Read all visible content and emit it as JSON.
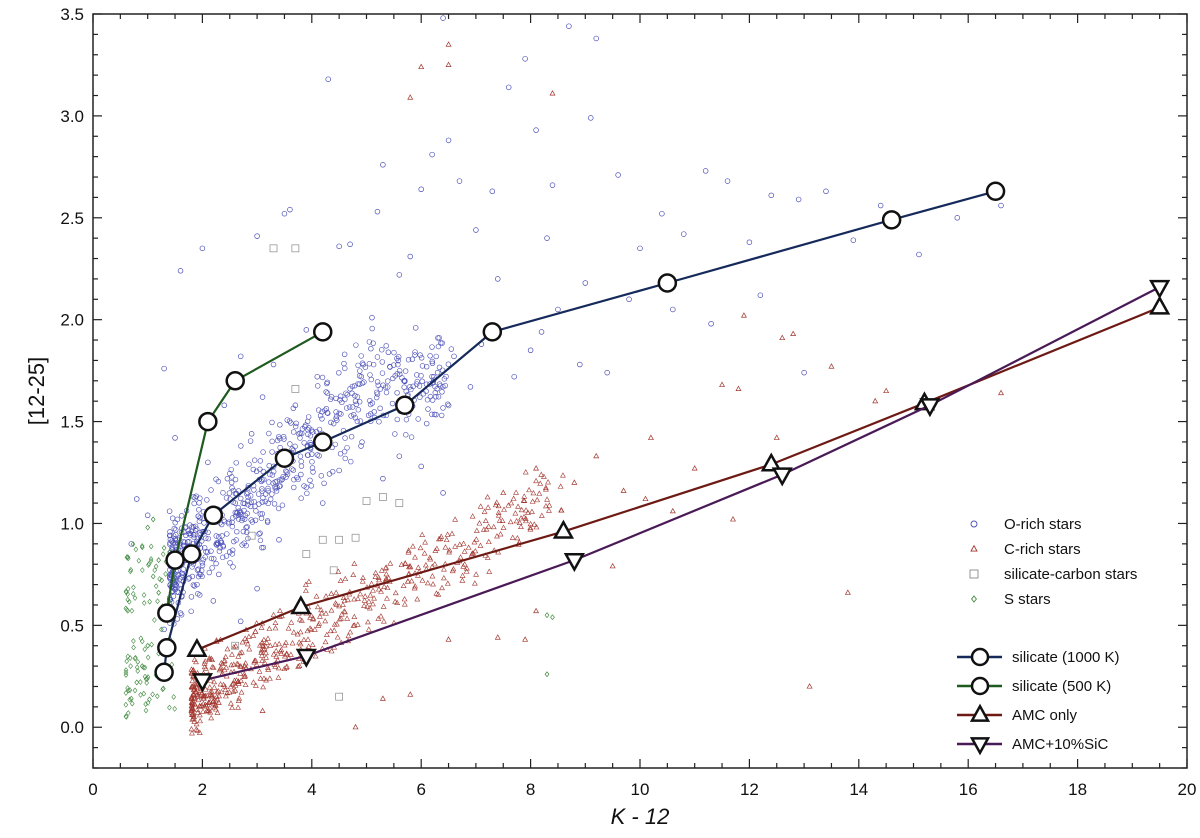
{
  "chart_data": {
    "type": "scatter",
    "title": "",
    "xlabel": "K - 12",
    "ylabel": "[12-25]",
    "xlim": [
      0,
      20
    ],
    "ylim": [
      -0.2,
      3.5
    ],
    "xticks": [
      0,
      2,
      4,
      6,
      8,
      10,
      12,
      14,
      16,
      18,
      20
    ],
    "yticks": [
      0.0,
      0.5,
      1.0,
      1.5,
      2.0,
      2.5,
      3.0,
      3.5
    ],
    "ytick_labels": [
      "0.0",
      "0.5",
      "1.0",
      "1.5",
      "2.0",
      "2.5",
      "3.0",
      "3.5"
    ],
    "grid": false,
    "legend_position": "right",
    "scatter_series": [
      {
        "name": "O-rich stars",
        "marker": "circle",
        "color": "#4b4fb8",
        "points": [
          [
            1.3,
            1.76
          ],
          [
            2.0,
            2.35
          ],
          [
            1.6,
            2.24
          ],
          [
            2.7,
            1.82
          ],
          [
            3.0,
            2.41
          ],
          [
            3.5,
            2.52
          ],
          [
            3.6,
            2.54
          ],
          [
            4.3,
            3.18
          ],
          [
            4.5,
            2.36
          ],
          [
            4.7,
            2.37
          ],
          [
            5.2,
            2.53
          ],
          [
            5.3,
            2.76
          ],
          [
            5.6,
            2.22
          ],
          [
            5.8,
            2.31
          ],
          [
            6.0,
            2.64
          ],
          [
            6.2,
            2.81
          ],
          [
            6.5,
            2.88
          ],
          [
            6.7,
            2.68
          ],
          [
            7.0,
            2.44
          ],
          [
            7.3,
            2.63
          ],
          [
            7.6,
            3.14
          ],
          [
            7.9,
            3.28
          ],
          [
            8.1,
            2.93
          ],
          [
            8.4,
            2.66
          ],
          [
            8.7,
            3.44
          ],
          [
            9.1,
            2.99
          ],
          [
            9.2,
            3.38
          ],
          [
            9.6,
            2.71
          ],
          [
            10.0,
            2.35
          ],
          [
            10.4,
            2.52
          ],
          [
            10.8,
            2.42
          ],
          [
            11.2,
            2.73
          ],
          [
            11.6,
            2.68
          ],
          [
            12.0,
            2.38
          ],
          [
            12.4,
            2.61
          ],
          [
            12.9,
            2.59
          ],
          [
            13.4,
            2.63
          ],
          [
            13.9,
            2.39
          ],
          [
            14.4,
            2.56
          ],
          [
            15.1,
            2.32
          ],
          [
            15.8,
            2.5
          ],
          [
            16.6,
            2.56
          ],
          [
            6.4,
            3.48
          ],
          [
            7.4,
            2.2
          ],
          [
            8.3,
            2.4
          ],
          [
            9.0,
            2.18
          ],
          [
            9.8,
            2.1
          ],
          [
            10.6,
            2.05
          ],
          [
            11.3,
            1.98
          ],
          [
            12.2,
            2.12
          ],
          [
            13.0,
            1.74
          ],
          [
            8.9,
            1.78
          ],
          [
            9.4,
            1.74
          ],
          [
            8.0,
            1.85
          ],
          [
            0.7,
            0.9
          ],
          [
            1.0,
            1.04
          ],
          [
            0.8,
            1.12
          ],
          [
            1.5,
            1.42
          ],
          [
            1.4,
            1.06
          ],
          [
            1.9,
            0.7
          ],
          [
            2.1,
            1.3
          ],
          [
            2.4,
            1.58
          ],
          [
            2.6,
            1.1
          ],
          [
            2.9,
            1.44
          ],
          [
            3.1,
            1.62
          ],
          [
            3.3,
            1.78
          ],
          [
            3.7,
            1.58
          ],
          [
            3.9,
            1.95
          ],
          [
            4.1,
            1.72
          ],
          [
            4.4,
            1.49
          ],
          [
            4.6,
            1.83
          ],
          [
            4.8,
            1.6
          ],
          [
            5.1,
            2.01
          ],
          [
            5.4,
            1.84
          ],
          [
            5.7,
            1.7
          ],
          [
            5.9,
            1.96
          ],
          [
            6.1,
            1.49
          ],
          [
            6.3,
            1.74
          ],
          [
            6.6,
            1.82
          ],
          [
            6.9,
            1.67
          ],
          [
            7.1,
            1.88
          ],
          [
            7.7,
            1.72
          ],
          [
            8.2,
            1.94
          ],
          [
            8.5,
            2.05
          ],
          [
            2.2,
            0.62
          ],
          [
            2.5,
            0.86
          ],
          [
            2.8,
            0.98
          ],
          [
            3.2,
            1.16
          ],
          [
            3.4,
            0.92
          ],
          [
            3.8,
            1.24
          ],
          [
            4.0,
            1.34
          ],
          [
            4.2,
            1.1
          ],
          [
            4.5,
            1.26
          ],
          [
            4.9,
            1.38
          ],
          [
            5.3,
            1.22
          ],
          [
            5.6,
            1.33
          ],
          [
            6.0,
            1.28
          ],
          [
            6.4,
            1.15
          ],
          [
            1.7,
            0.82
          ],
          [
            1.8,
            0.64
          ],
          [
            2.0,
            0.96
          ],
          [
            2.3,
            0.75
          ],
          [
            2.7,
            0.52
          ],
          [
            3.0,
            0.68
          ],
          [
            1.6,
            0.56
          ],
          [
            1.3,
            0.48
          ]
        ],
        "cloud_points": 700,
        "cloud_x": [
          1.4,
          6.6
        ],
        "cloud_y": [
          0.4,
          2.0
        ]
      },
      {
        "name": "C-rich stars",
        "marker": "triangle",
        "color": "#a3362e",
        "points": [
          [
            6.5,
            3.35
          ],
          [
            6.5,
            3.25
          ],
          [
            6.0,
            3.24
          ],
          [
            5.8,
            3.09
          ],
          [
            8.4,
            3.11
          ],
          [
            11.5,
            1.68
          ],
          [
            11.8,
            1.66
          ],
          [
            12.5,
            1.42
          ],
          [
            12.8,
            1.93
          ],
          [
            13.5,
            1.77
          ],
          [
            14.5,
            1.65
          ],
          [
            15.1,
            1.58
          ],
          [
            16.6,
            1.64
          ],
          [
            10.2,
            1.42
          ],
          [
            11.0,
            1.27
          ],
          [
            9.2,
            1.33
          ],
          [
            8.8,
            1.2
          ],
          [
            8.1,
            1.27
          ],
          [
            7.5,
            1.15
          ],
          [
            13.1,
            0.2
          ],
          [
            13.8,
            0.66
          ],
          [
            14.3,
            1.6
          ],
          [
            12.6,
            1.91
          ],
          [
            11.9,
            2.02
          ],
          [
            1.8,
            0.08
          ],
          [
            2.3,
            0.12
          ],
          [
            4.8,
            0.0
          ],
          [
            5.3,
            0.14
          ],
          [
            5.8,
            0.16
          ],
          [
            6.5,
            0.43
          ],
          [
            7.4,
            0.44
          ],
          [
            8.1,
            0.57
          ],
          [
            7.9,
            0.43
          ],
          [
            9.5,
            0.79
          ],
          [
            10.6,
            1.06
          ],
          [
            11.7,
            1.02
          ],
          [
            10.1,
            1.12
          ],
          [
            9.7,
            1.16
          ],
          [
            3.1,
            0.08
          ],
          [
            2.6,
            0.18
          ],
          [
            2.8,
            0.29
          ]
        ],
        "cloud_points": 600,
        "cloud_x": [
          1.8,
          8.6
        ],
        "cloud_y": [
          0.05,
          1.5
        ]
      },
      {
        "name": "silicate-carbon stars",
        "marker": "square",
        "color": "#8a8a8a",
        "points": [
          [
            3.3,
            2.35
          ],
          [
            3.7,
            2.35
          ],
          [
            3.7,
            1.66
          ],
          [
            4.5,
            0.92
          ],
          [
            4.8,
            0.93
          ],
          [
            4.4,
            0.77
          ],
          [
            3.9,
            0.85
          ],
          [
            5.6,
            1.1
          ],
          [
            5.3,
            1.13
          ],
          [
            4.5,
            0.15
          ],
          [
            4.2,
            0.92
          ],
          [
            2.6,
            0.4
          ],
          [
            2.9,
            0.94
          ],
          [
            5.0,
            1.11
          ]
        ]
      },
      {
        "name": "S stars",
        "marker": "diamond",
        "color": "#3f8a3f",
        "points": [
          [
            8.4,
            0.54
          ],
          [
            8.3,
            0.55
          ],
          [
            8.3,
            0.26
          ],
          [
            1.3,
            0.88
          ],
          [
            1.2,
            0.82
          ],
          [
            1.0,
            0.98
          ],
          [
            1.1,
            1.02
          ],
          [
            1.4,
            0.86
          ],
          [
            0.7,
            0.14
          ],
          [
            0.8,
            0.22
          ],
          [
            0.9,
            0.3
          ],
          [
            1.0,
            0.4
          ],
          [
            1.2,
            0.66
          ],
          [
            1.1,
            0.74
          ]
        ],
        "cloud_points": 110,
        "cloud_x": [
          0.6,
          1.5
        ],
        "cloud_y": [
          0.05,
          0.9
        ]
      }
    ],
    "line_series": [
      {
        "name": "silicate (1000 K)",
        "marker": "circle",
        "color": "#152a5a",
        "points": [
          [
            1.3,
            0.27
          ],
          [
            1.35,
            0.39
          ],
          [
            1.8,
            0.85
          ],
          [
            2.2,
            1.04
          ],
          [
            3.5,
            1.32
          ],
          [
            4.2,
            1.4
          ],
          [
            5.7,
            1.58
          ],
          [
            7.3,
            1.94
          ],
          [
            10.5,
            2.18
          ],
          [
            14.6,
            2.49
          ],
          [
            16.5,
            2.63
          ]
        ]
      },
      {
        "name": "silicate (500 K)",
        "marker": "circle",
        "color": "#1f5a1f",
        "points": [
          [
            1.35,
            0.56
          ],
          [
            1.5,
            0.82
          ],
          [
            2.1,
            1.5
          ],
          [
            2.6,
            1.7
          ],
          [
            4.2,
            1.94
          ]
        ]
      },
      {
        "name": "AMC only",
        "marker": "triangle",
        "color": "#6e1a14",
        "points": [
          [
            1.9,
            0.38
          ],
          [
            3.8,
            0.59
          ],
          [
            8.6,
            0.96
          ],
          [
            12.4,
            1.29
          ],
          [
            15.2,
            1.59
          ],
          [
            19.5,
            2.06
          ]
        ]
      },
      {
        "name": "AMC+10%SiC",
        "marker": "triangle-down",
        "color": "#4a1a56",
        "points": [
          [
            2.0,
            0.23
          ],
          [
            3.9,
            0.35
          ],
          [
            8.8,
            0.82
          ],
          [
            12.6,
            1.24
          ],
          [
            15.3,
            1.58
          ],
          [
            19.5,
            2.16
          ]
        ]
      }
    ]
  }
}
